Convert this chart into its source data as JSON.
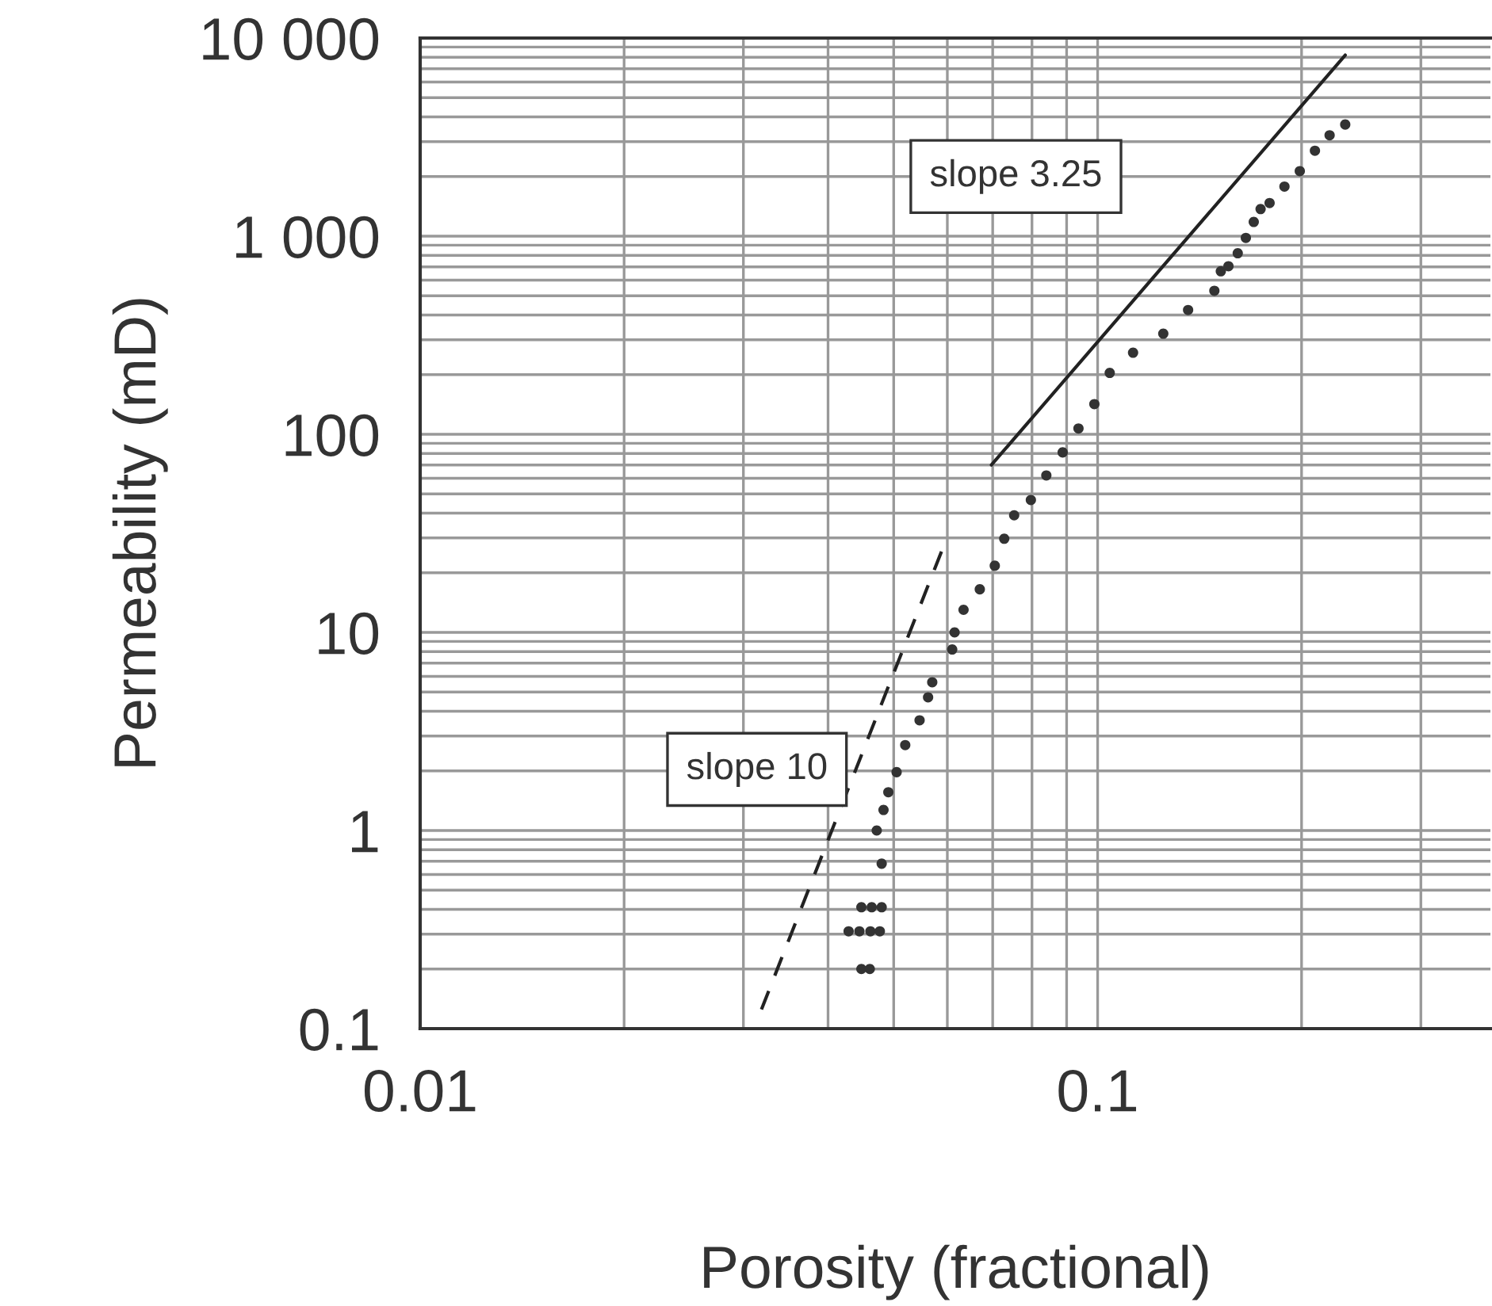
{
  "chart_data": {
    "type": "scatter",
    "xlabel": "Porosity (fractional)",
    "ylabel": "Permeability (mD)",
    "log": "xy",
    "grid": true,
    "xlim": [
      0.01,
      0.38
    ],
    "ylim": [
      0.1,
      10000
    ],
    "xticks": [
      0.01,
      0.1
    ],
    "yticks": [
      0.1,
      1,
      10,
      100,
      {
        "value": 1000,
        "label": "1 000"
      },
      {
        "value": 10000,
        "label": "10 000"
      }
    ],
    "series": [
      {
        "color": "#333333",
        "marker": "circle",
        "x": [
          0.0448,
          0.0461,
          0.0429,
          0.0445,
          0.0462,
          0.0477,
          0.0448,
          0.0464,
          0.048,
          0.048,
          0.0472,
          0.0483,
          0.0491,
          0.0505,
          0.052,
          0.0546,
          0.0562,
          0.057,
          0.061,
          0.0615,
          0.0634,
          0.067,
          0.0705,
          0.0728,
          0.0753,
          0.0797,
          0.084,
          0.0888,
          0.0937,
          0.0989,
          0.1042,
          0.1128,
          0.125,
          0.136,
          0.1487,
          0.152,
          0.156,
          0.161,
          0.1655,
          0.17,
          0.174,
          0.1794,
          0.1887,
          0.1988,
          0.2093,
          0.22,
          0.232
        ],
        "values": [
          0.2,
          0.2,
          0.31,
          0.31,
          0.31,
          0.31,
          0.41,
          0.41,
          0.41,
          0.68,
          1.0,
          1.27,
          1.56,
          1.97,
          2.7,
          3.6,
          4.7,
          5.6,
          8.2,
          10,
          13,
          16.5,
          21.7,
          29.7,
          39,
          46.6,
          62,
          81,
          107,
          142,
          204,
          258,
          322,
          424,
          530,
          665,
          705,
          820,
          980,
          1180,
          1370,
          1470,
          1780,
          2130,
          2700,
          3230,
          3660
        ]
      },
      {
        "type": "line",
        "name": "slope 3.25",
        "color": "#222222",
        "marker": "none",
        "line_style": "solid",
        "x": [
          0.0697,
          0.232
        ],
        "values": [
          70,
          8200
        ]
      },
      {
        "type": "line",
        "name": "slope 10",
        "color": "#222222",
        "marker": "none",
        "line_style": "dashed",
        "x": [
          0.0319,
          0.0599
        ],
        "values": [
          0.125,
          30
        ]
      }
    ]
  }
}
